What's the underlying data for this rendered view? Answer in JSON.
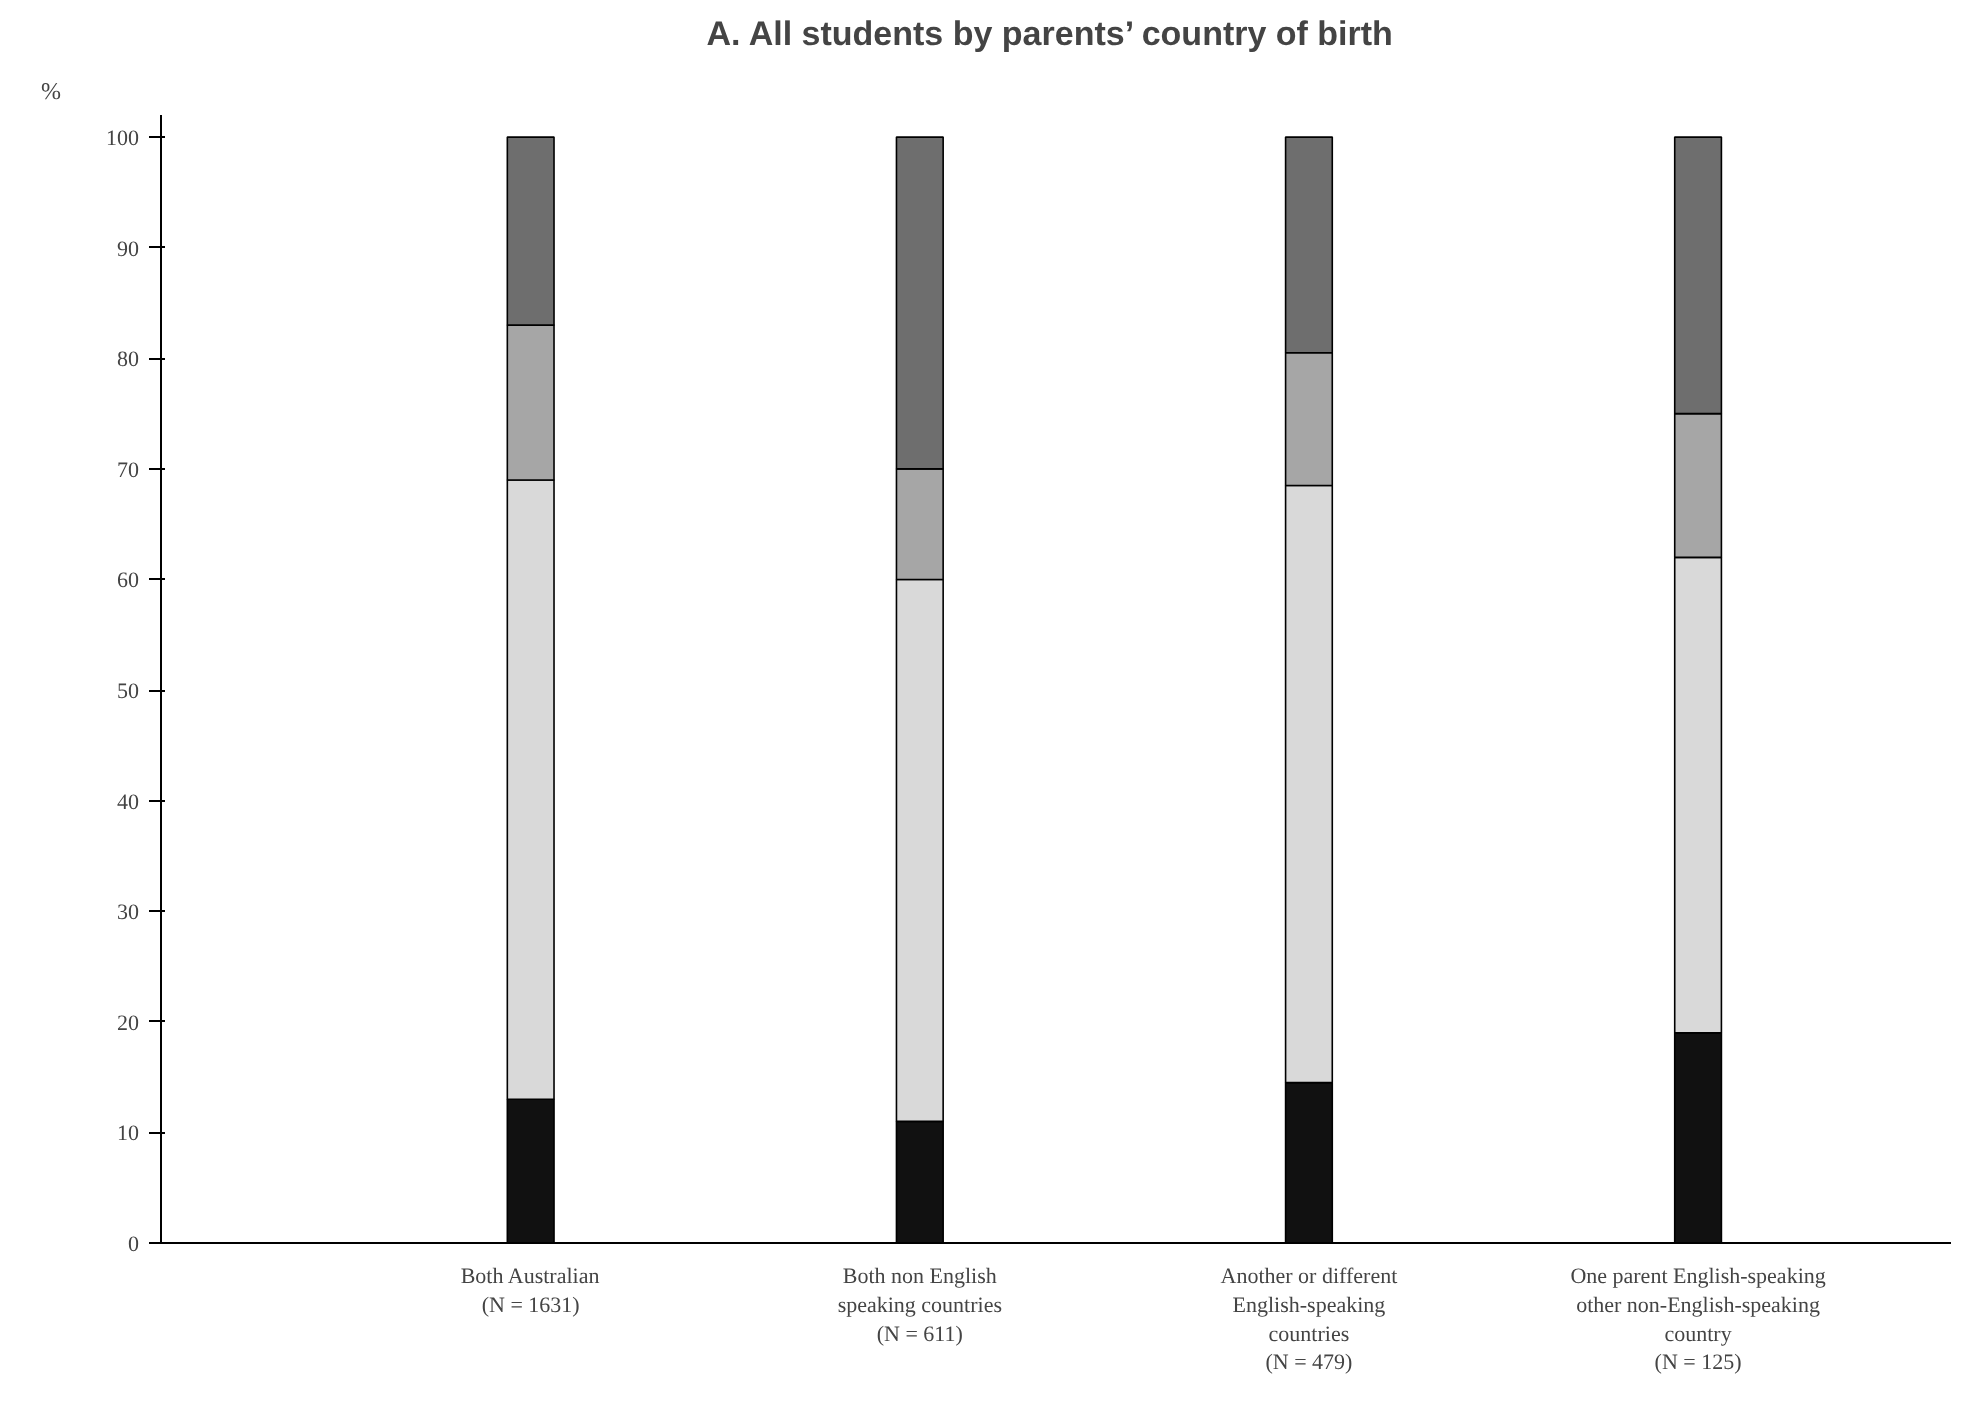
{
  "chart_data": {
    "type": "bar",
    "stacked": true,
    "title": "A.  All students by parents’ country of birth",
    "ylabel": "%",
    "categories": [
      "Both Australian\n(N = 1631)",
      "Both non English\nspeaking countries\n(N = 611)",
      "Another or different\nEnglish-speaking\ncountries\n(N = 479)",
      "One parent English-speaking\nother non-English-speaking\ncountry\n(N = 125)"
    ],
    "series": [
      {
        "color": "#111111",
        "values": [
          13,
          11,
          14.5,
          19
        ]
      },
      {
        "color": "#d9d9d9",
        "values": [
          56,
          49,
          54,
          43
        ]
      },
      {
        "color": "#a6a6a6",
        "values": [
          14,
          10,
          12,
          13
        ]
      },
      {
        "color": "#6e6e6e",
        "values": [
          17,
          30,
          19.5,
          25
        ]
      }
    ],
    "ylim": [
      0,
      100
    ],
    "yticks": [
      0,
      10,
      20,
      30,
      40,
      50,
      60,
      70,
      80,
      90,
      100
    ],
    "grid": false
  }
}
